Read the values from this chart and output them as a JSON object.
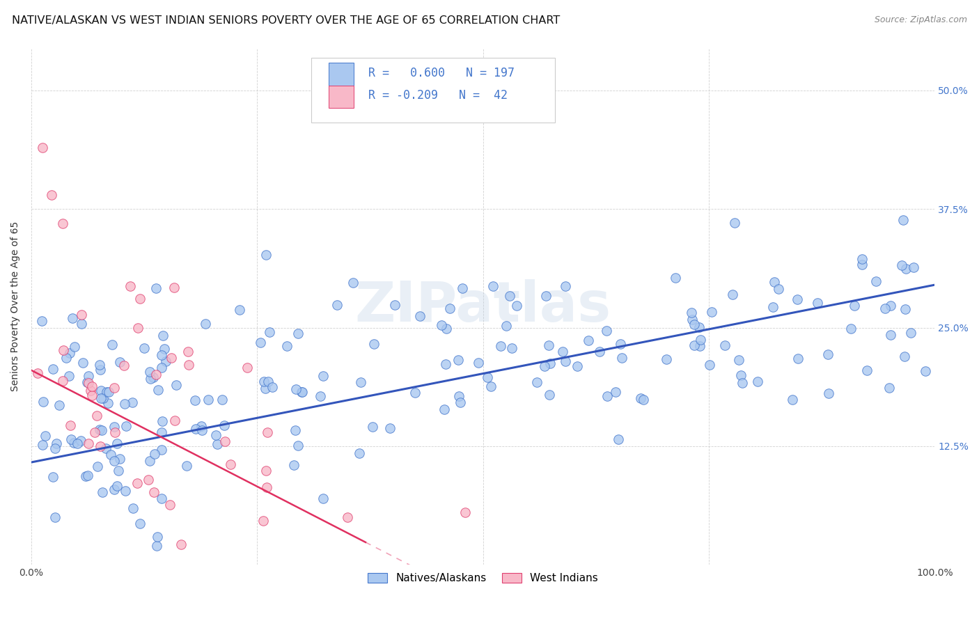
{
  "title": "NATIVE/ALASKAN VS WEST INDIAN SENIORS POVERTY OVER THE AGE OF 65 CORRELATION CHART",
  "source": "Source: ZipAtlas.com",
  "ylabel": "Seniors Poverty Over the Age of 65",
  "r_native": 0.6,
  "n_native": 197,
  "r_west": -0.209,
  "n_west": 42,
  "xlim": [
    0.0,
    1.0
  ],
  "ylim": [
    0.0,
    0.545
  ],
  "yticks": [
    0.125,
    0.25,
    0.375,
    0.5
  ],
  "ytick_labels": [
    "12.5%",
    "25.0%",
    "37.5%",
    "50.0%"
  ],
  "xticks": [
    0.0,
    0.25,
    0.5,
    0.75,
    1.0
  ],
  "xtick_labels": [
    "0.0%",
    "",
    "",
    "",
    "100.0%"
  ],
  "color_native": "#aac8f0",
  "edge_native": "#4477cc",
  "color_west": "#f8b8c8",
  "edge_west": "#e04070",
  "line_color_native": "#3355bb",
  "line_color_west": "#e03060",
  "watermark": "ZIPatlas",
  "background_color": "#ffffff",
  "title_fontsize": 11.5,
  "axis_label_fontsize": 10,
  "tick_fontsize": 10,
  "legend_fontsize": 12,
  "native_line_start_y": 0.108,
  "native_line_end_y": 0.295,
  "west_line_start_y": 0.205,
  "west_line_end_x_solid": 0.37,
  "west_line_end_y_solid": 0.025,
  "west_line_end_x_dash": 1.0,
  "west_slope": -0.49
}
